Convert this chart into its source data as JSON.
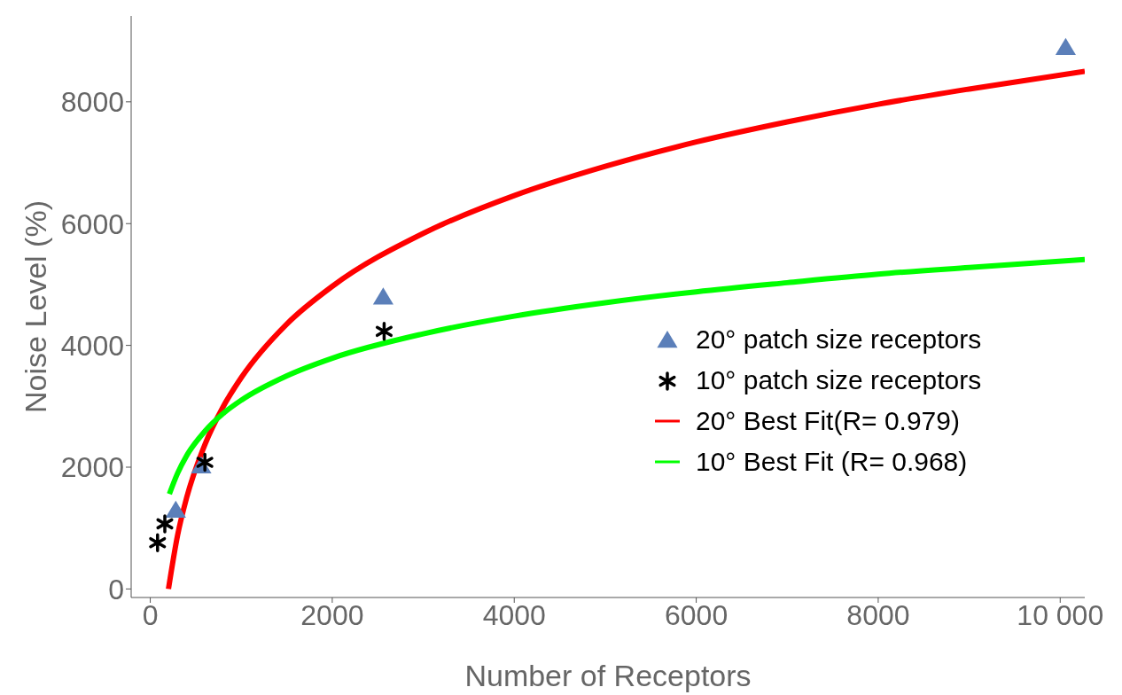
{
  "chart_data": {
    "type": "scatter",
    "xlabel": "Number of Receptors",
    "ylabel": "Noise Level (%)",
    "xlim": [
      -210,
      10270
    ],
    "ylim": [
      -140,
      9410
    ],
    "xticks": [
      0,
      2000,
      4000,
      6000,
      8000,
      {
        "value": 10000,
        "label": "10 000"
      }
    ],
    "yticks": [
      0,
      2000,
      4000,
      6000,
      8000
    ],
    "legend": "right",
    "series": [
      {
        "name": "20° patch size receptors",
        "marker": "triangle",
        "color": "#5b7fb9",
        "x": [
          280,
          560,
          2560,
          10060
        ],
        "values": [
          1290,
          2020,
          4790,
          8890
        ]
      },
      {
        "name": "10° patch size receptors",
        "marker": "cross",
        "color": "#000000",
        "x": [
          80,
          160,
          600,
          2570
        ],
        "values": [
          760,
          1070,
          2080,
          4230
        ]
      },
      {
        "name": "20° Best Fit(R= 0.979)",
        "type": "line",
        "color": "#ff0000",
        "x": [
          200,
          300,
          400,
          600,
          800,
          1000,
          1500,
          2000,
          3000,
          4000,
          5000,
          6000,
          7000,
          8000,
          9000,
          10270
        ],
        "values": [
          0,
          880,
          1500,
          2370,
          2990,
          3470,
          4350,
          4970,
          5840,
          6460,
          6940,
          7340,
          7670,
          7960,
          8210,
          8500
        ]
      },
      {
        "name": "10° Best Fit (R= 0.968)",
        "type": "line",
        "color": "#00ff00",
        "x": [
          210,
          300,
          400,
          600,
          800,
          1000,
          1500,
          2000,
          3000,
          4000,
          5000,
          6000,
          7000,
          8000,
          9000,
          10270
        ],
        "values": [
          1560,
          1900,
          2190,
          2590,
          2880,
          3100,
          3500,
          3790,
          4190,
          4480,
          4700,
          4880,
          5030,
          5170,
          5280,
          5410
        ]
      }
    ]
  }
}
